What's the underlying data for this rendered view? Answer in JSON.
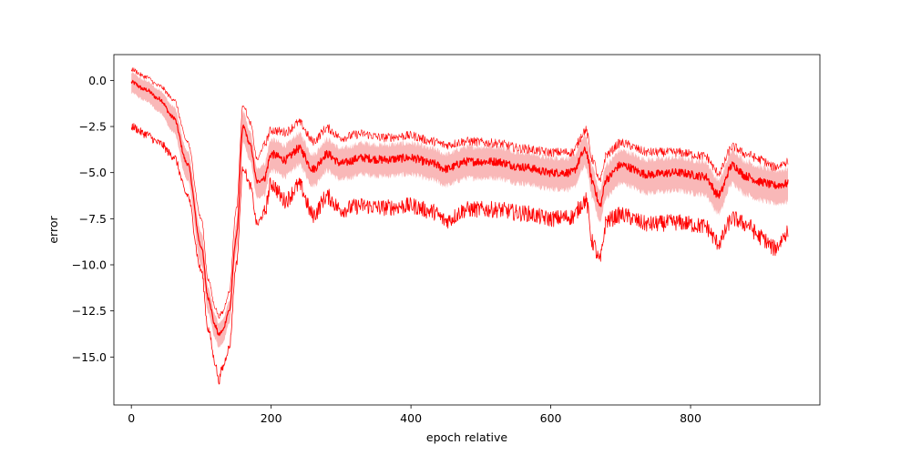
{
  "chart_data": {
    "type": "line",
    "title": "",
    "xlabel": "epoch relative",
    "ylabel": "error",
    "xlim": [
      -25,
      985
    ],
    "ylim": [
      -17.6,
      1.4
    ],
    "xticks": [
      0,
      200,
      400,
      600,
      800
    ],
    "yticks": [
      0.0,
      -2.5,
      -5.0,
      -7.5,
      -10.0,
      -12.5,
      -15.0
    ],
    "ytick_labels": [
      "0.0",
      "−2.5",
      "−5.0",
      "−7.5",
      "−10.0",
      "−12.5",
      "−15.0"
    ],
    "grid": false,
    "legend": "none",
    "colors": {
      "line": "#ff0000",
      "band": "#f9b8b8",
      "frame": "#000000"
    },
    "x": [
      0,
      20,
      40,
      60,
      80,
      100,
      110,
      120,
      125,
      130,
      140,
      150,
      160,
      170,
      180,
      190,
      200,
      220,
      240,
      260,
      280,
      300,
      330,
      360,
      400,
      430,
      450,
      480,
      520,
      560,
      600,
      630,
      650,
      660,
      670,
      680,
      700,
      740,
      780,
      820,
      840,
      860,
      880,
      900,
      920,
      940
    ],
    "series": [
      {
        "role": "mean",
        "values": [
          -0.1,
          -0.5,
          -1.0,
          -2.0,
          -4.5,
          -9.0,
          -11.8,
          -13.3,
          -13.8,
          -13.6,
          -12.5,
          -8.5,
          -2.5,
          -3.5,
          -5.5,
          -5.3,
          -4.0,
          -4.3,
          -3.7,
          -4.8,
          -4.0,
          -4.5,
          -4.2,
          -4.3,
          -4.2,
          -4.5,
          -4.8,
          -4.4,
          -4.4,
          -4.7,
          -5.0,
          -5.0,
          -3.8,
          -5.5,
          -6.8,
          -5.3,
          -4.6,
          -5.1,
          -5.0,
          -5.2,
          -6.2,
          -4.6,
          -5.2,
          -5.5,
          -5.7,
          -5.6
        ]
      },
      {
        "role": "band-upper",
        "values": [
          0.4,
          0.0,
          -0.5,
          -1.4,
          -3.8,
          -8.2,
          -11.2,
          -12.7,
          -13.2,
          -13.0,
          -12.0,
          -7.8,
          -1.7,
          -2.8,
          -4.8,
          -4.5,
          -3.2,
          -3.5,
          -2.9,
          -4.0,
          -3.2,
          -3.7,
          -3.4,
          -3.5,
          -3.4,
          -3.7,
          -4.0,
          -3.6,
          -3.6,
          -3.9,
          -4.2,
          -4.2,
          -3.0,
          -4.7,
          -6.0,
          -4.5,
          -3.8,
          -4.3,
          -4.2,
          -4.4,
          -5.4,
          -3.8,
          -4.4,
          -4.7,
          -4.9,
          -4.8
        ]
      },
      {
        "role": "band-lower",
        "values": [
          -0.7,
          -1.1,
          -1.7,
          -2.8,
          -5.4,
          -10.0,
          -12.6,
          -14.0,
          -14.5,
          -14.3,
          -13.2,
          -9.3,
          -3.4,
          -4.4,
          -6.4,
          -6.2,
          -4.9,
          -5.2,
          -4.6,
          -5.7,
          -4.9,
          -5.4,
          -5.1,
          -5.2,
          -5.1,
          -5.4,
          -5.7,
          -5.3,
          -5.3,
          -5.6,
          -5.9,
          -5.9,
          -4.7,
          -6.4,
          -7.7,
          -6.3,
          -5.6,
          -6.1,
          -6.0,
          -6.2,
          -7.2,
          -5.6,
          -6.2,
          -6.5,
          -6.7,
          -6.6
        ]
      },
      {
        "role": "max",
        "values": [
          0.6,
          0.2,
          -0.3,
          -1.0,
          -3.3,
          -7.5,
          -10.8,
          -12.3,
          -12.8,
          -12.6,
          -11.5,
          -7.0,
          -1.3,
          -2.3,
          -4.3,
          -3.5,
          -2.7,
          -2.8,
          -2.3,
          -3.3,
          -2.6,
          -3.1,
          -2.9,
          -3.1,
          -3.0,
          -3.3,
          -3.5,
          -3.3,
          -3.4,
          -3.7,
          -3.9,
          -3.9,
          -2.7,
          -4.3,
          -5.5,
          -4.0,
          -3.4,
          -3.9,
          -3.9,
          -4.1,
          -5.0,
          -3.6,
          -4.0,
          -4.3,
          -4.7,
          -4.4
        ]
      },
      {
        "role": "min",
        "values": [
          -2.5,
          -2.9,
          -3.4,
          -4.1,
          -6.2,
          -10.3,
          -13.5,
          -15.3,
          -16.3,
          -15.6,
          -14.5,
          -10.0,
          -4.7,
          -5.7,
          -7.8,
          -7.2,
          -5.6,
          -6.5,
          -5.7,
          -7.3,
          -6.3,
          -7.0,
          -6.8,
          -6.9,
          -6.8,
          -7.1,
          -7.6,
          -7.0,
          -7.0,
          -7.2,
          -7.5,
          -7.4,
          -6.5,
          -8.8,
          -9.8,
          -7.6,
          -7.3,
          -7.8,
          -7.7,
          -7.9,
          -8.8,
          -7.5,
          -7.8,
          -8.5,
          -9.1,
          -8.2
        ]
      }
    ]
  }
}
